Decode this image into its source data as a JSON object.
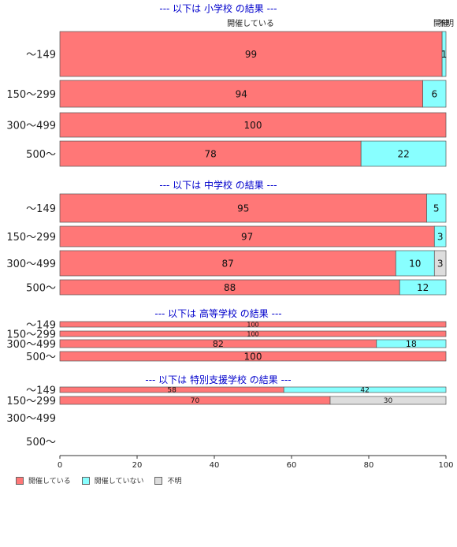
{
  "colors": {
    "held": "#ff7777",
    "not_held": "#88ffff",
    "unknown": "#dddddd",
    "section_title": "#0000cc"
  },
  "legend": [
    {
      "label": "開催している",
      "color": "#ff7777"
    },
    {
      "label": "開催していない",
      "color": "#88ffff"
    },
    {
      "label": "不明",
      "color": "#dddddd"
    }
  ],
  "chart_data": {
    "type": "bar",
    "orientation": "horizontal-stacked-percent",
    "xlim": [
      0,
      100
    ],
    "xticks": [
      "0",
      "20",
      "40",
      "60",
      "80",
      "100"
    ],
    "top_labels": [
      "開催している",
      "開催",
      "不明"
    ],
    "series_names": [
      "開催している",
      "開催していない",
      "不明"
    ],
    "panels": [
      {
        "title": "--- 以下は 小学校 の結果 ---",
        "categories": [
          "〜149",
          "150〜299",
          "300〜499",
          "500〜"
        ],
        "values": [
          [
            99,
            1,
            0
          ],
          [
            94,
            6,
            0
          ],
          [
            100,
            0,
            0
          ],
          [
            78,
            22,
            0
          ]
        ]
      },
      {
        "title": "--- 以下は 中学校 の結果 ---",
        "categories": [
          "〜149",
          "150〜299",
          "300〜499",
          "500〜"
        ],
        "values": [
          [
            95,
            5,
            0
          ],
          [
            97,
            3,
            0
          ],
          [
            87,
            10,
            3
          ],
          [
            88,
            12,
            0
          ]
        ]
      },
      {
        "title": "--- 以下は 高等学校 の結果 ---",
        "categories": [
          "〜149",
          "150〜299",
          "300〜499",
          "500〜"
        ],
        "values": [
          [
            100,
            0,
            0
          ],
          [
            100,
            0,
            0
          ],
          [
            82,
            18,
            0
          ],
          [
            100,
            0,
            0
          ]
        ]
      },
      {
        "title": "--- 以下は 特別支援学校 の結果 ---",
        "categories": [
          "〜149",
          "150〜299",
          "300〜499",
          "500〜"
        ],
        "values": [
          [
            58,
            42,
            0
          ],
          [
            70,
            0,
            30
          ],
          null,
          null
        ]
      }
    ]
  }
}
